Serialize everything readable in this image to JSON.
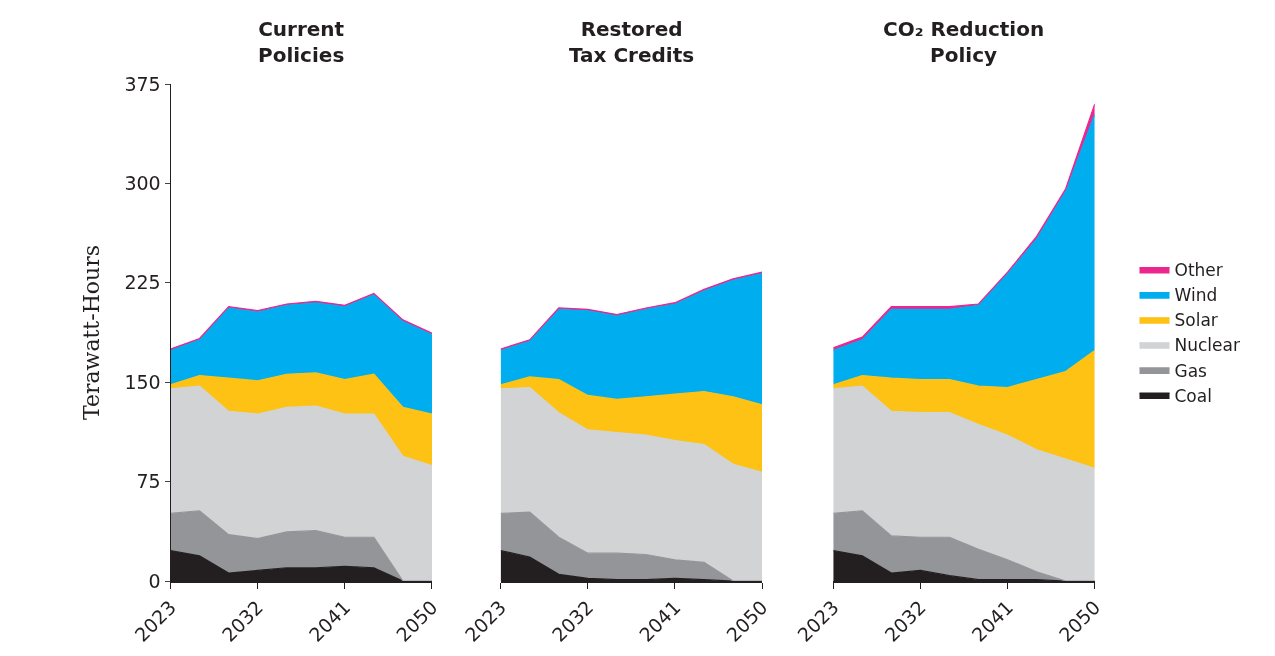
{
  "chart_data": [
    {
      "type": "area",
      "title": "Current\nPolicies",
      "ylabel": "Terawatt-Hours",
      "x": [
        2023,
        2026,
        2029,
        2032,
        2035,
        2038,
        2041,
        2044,
        2047,
        2050
      ],
      "xlim": [
        2023,
        2050
      ],
      "xticks": [
        2023,
        2032,
        2041,
        2050
      ],
      "ylim": [
        0,
        375
      ],
      "yticks": [
        0,
        75,
        150,
        225,
        300,
        375
      ],
      "stacked": true,
      "series": [
        {
          "color": "#231f20",
          "values": [
            23,
            19,
            6,
            8,
            10,
            10,
            11,
            10,
            0,
            0
          ]
        },
        {
          "color": "#939598",
          "values": [
            28,
            34,
            29,
            24,
            27,
            28,
            22,
            23,
            0,
            0
          ]
        },
        {
          "color": "#d1d3d4",
          "values": [
            94,
            94,
            93,
            94,
            94,
            94,
            93,
            93,
            94,
            87
          ]
        },
        {
          "color": "#fdc214",
          "values": [
            3,
            8,
            25,
            25,
            25,
            25,
            26,
            30,
            37,
            39
          ]
        },
        {
          "color": "#00aeef",
          "values": [
            26,
            27,
            53,
            52,
            52,
            53,
            55,
            60,
            65,
            60
          ]
        },
        {
          "color": "#ec268f",
          "values": [
            1,
            1,
            1,
            1,
            1,
            1,
            1,
            1,
            1,
            1
          ]
        }
      ]
    },
    {
      "type": "area",
      "title": "Restored\nTax Credits",
      "x": [
        2023,
        2026,
        2029,
        2032,
        2035,
        2038,
        2041,
        2044,
        2047,
        2050
      ],
      "xlim": [
        2023,
        2050
      ],
      "xticks": [
        2023,
        2032,
        2041,
        2050
      ],
      "ylim": [
        0,
        375
      ],
      "stacked": true,
      "tick_labels": "x",
      "series": [
        {
          "color": "#231f20",
          "values": [
            23,
            18,
            5,
            2,
            1,
            1,
            2,
            1,
            0,
            0
          ]
        },
        {
          "color": "#939598",
          "values": [
            28,
            34,
            28,
            19,
            20,
            19,
            14,
            13,
            0,
            0
          ]
        },
        {
          "color": "#d1d3d4",
          "values": [
            94,
            94,
            94,
            93,
            91,
            90,
            90,
            89,
            88,
            82
          ]
        },
        {
          "color": "#fdc214",
          "values": [
            3,
            8,
            25,
            26,
            25,
            29,
            35,
            40,
            51,
            51
          ]
        },
        {
          "color": "#00aeef",
          "values": [
            26,
            27,
            53,
            64,
            63,
            66,
            68,
            76,
            88,
            99
          ]
        },
        {
          "color": "#ec268f",
          "values": [
            1,
            1,
            1,
            1,
            1,
            1,
            1,
            1,
            1,
            1
          ]
        }
      ]
    },
    {
      "type": "area",
      "title": "CO₂ Reduction\nPolicy",
      "x": [
        2023,
        2026,
        2029,
        2032,
        2035,
        2038,
        2041,
        2044,
        2047,
        2050
      ],
      "xlim": [
        2023,
        2050
      ],
      "xticks": [
        2023,
        2032,
        2041,
        2050
      ],
      "ylim": [
        0,
        375
      ],
      "stacked": true,
      "legend": "right",
      "tick_labels": "x",
      "series": [
        {
          "name": "Coal",
          "color": "#231f20",
          "values": [
            23,
            19,
            6,
            8,
            4,
            1,
            1,
            1,
            0,
            0
          ]
        },
        {
          "name": "Gas",
          "color": "#939598",
          "values": [
            28,
            34,
            28,
            25,
            29,
            23,
            15,
            6,
            0,
            0
          ]
        },
        {
          "name": "Nuclear",
          "color": "#d1d3d4",
          "values": [
            94,
            94,
            94,
            94,
            94,
            94,
            94,
            92,
            92,
            85
          ]
        },
        {
          "name": "Solar",
          "color": "#fdc214",
          "values": [
            3,
            8,
            25,
            25,
            25,
            29,
            36,
            53,
            66,
            89
          ]
        },
        {
          "name": "Wind",
          "color": "#00aeef",
          "values": [
            26,
            27,
            52,
            53,
            53,
            61,
            86,
            106,
            136,
            178
          ]
        },
        {
          "name": "Other",
          "color": "#ec268f",
          "values": [
            2,
            2,
            2,
            2,
            2,
            1,
            1,
            2,
            2,
            8
          ]
        }
      ]
    }
  ]
}
